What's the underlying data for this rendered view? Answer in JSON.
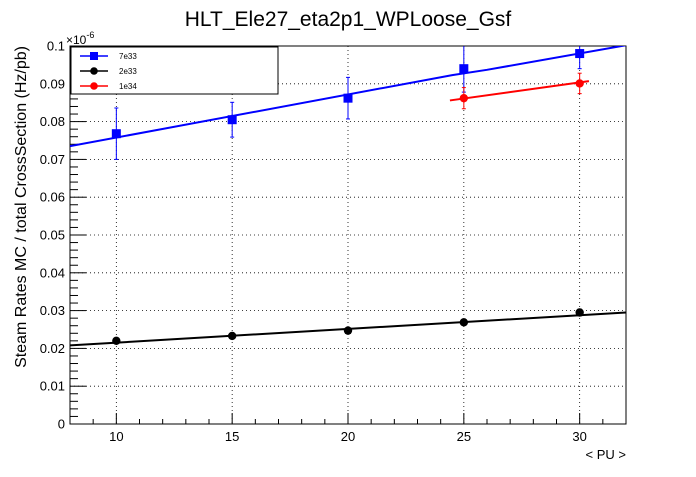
{
  "chart_data": {
    "type": "scatter",
    "title": "HLT_Ele27_eta2p1_WPLoose_Gsf",
    "xlabel": "< PU >",
    "ylabel": "Steam Rates MC / total CrossSection (Hz/pb)",
    "y_multiplier": "×10",
    "y_multiplier_exponent": "-6",
    "xlim": [
      8,
      32
    ],
    "ylim": [
      0,
      0.1
    ],
    "x_ticks": [
      10,
      15,
      20,
      25,
      30
    ],
    "x_tick_labels": [
      "10",
      "15",
      "20",
      "25",
      "30"
    ],
    "y_ticks": [
      0,
      0.01,
      0.02,
      0.03,
      0.04,
      0.05,
      0.06,
      0.07,
      0.08,
      0.09,
      0.1
    ],
    "y_tick_labels": [
      "0",
      "0.01",
      "0.02",
      "0.03",
      "0.04",
      "0.05",
      "0.06",
      "0.07",
      "0.08",
      "0.09",
      "0.1"
    ],
    "grid": true,
    "legend_position": "top-left",
    "series": [
      {
        "name": "7e33",
        "color": "#0000ff",
        "marker": "square",
        "x": [
          10,
          15,
          20,
          25,
          30
        ],
        "y": [
          0.0768,
          0.0805,
          0.0862,
          0.094,
          0.098
        ],
        "yerr": [
          0.0068,
          0.0046,
          0.0055,
          0.0062,
          0.004
        ],
        "fit": {
          "x": [
            8,
            24.5,
            26,
            32
          ],
          "y": [
            0.0735,
            0.0923,
            0.0937,
            0.1002
          ]
        }
      },
      {
        "name": "2e33",
        "color": "#000000",
        "marker": "circle",
        "x": [
          10,
          15,
          20,
          25,
          30
        ],
        "y": [
          0.022,
          0.0233,
          0.0247,
          0.0269,
          0.0295
        ],
        "yerr": [
          0.0007,
          0.0007,
          0.0007,
          0.0008,
          0.0009
        ],
        "fit": {
          "x": [
            8,
            32
          ],
          "y": [
            0.0208,
            0.0295
          ]
        }
      },
      {
        "name": "1e34",
        "color": "#ff0000",
        "marker": "circle",
        "x": [
          25,
          30
        ],
        "y": [
          0.0862,
          0.0901
        ],
        "yerr": [
          0.0028,
          0.0027
        ],
        "fit": {
          "x": [
            24.4,
            30.4
          ],
          "y": [
            0.0856,
            0.0907
          ]
        }
      }
    ]
  }
}
